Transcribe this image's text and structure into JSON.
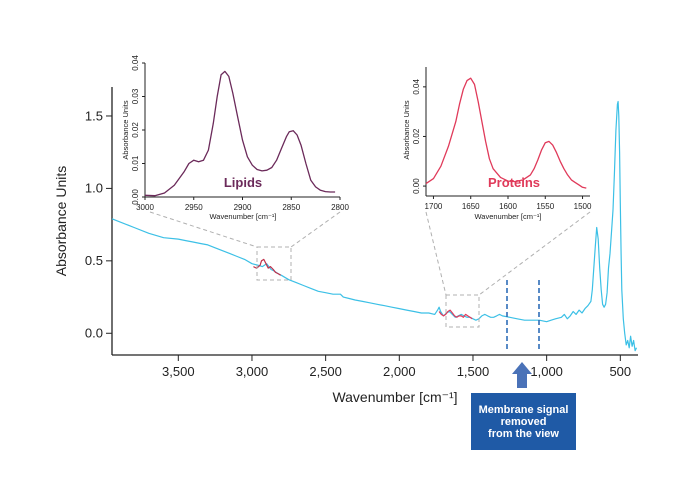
{
  "chart_data": [
    {
      "type": "line",
      "xlabel": "Wavenumber [cm⁻¹]",
      "ylabel": "Absorbance Units",
      "xlim": [
        3950,
        380
      ],
      "ylim": [
        -0.15,
        1.7
      ],
      "x_ticks": [
        3500,
        3000,
        2500,
        2000,
        1500,
        1000,
        500
      ],
      "x_tick_labels": [
        "3,500",
        "3,000",
        "2,500",
        "2,000",
        "1,500",
        "1,000",
        "500"
      ],
      "y_ticks": [
        0.0,
        0.5,
        1.0,
        1.5
      ],
      "y_tick_labels": [
        "0.0",
        "0.5",
        "1.0",
        "1.5"
      ],
      "series": [
        {
          "color": "#3cc0e6",
          "x": [
            3950,
            3800,
            3700,
            3600,
            3500,
            3450,
            3400,
            3350,
            3300,
            3250,
            3200,
            3150,
            3100,
            3050,
            3000,
            2960,
            2930,
            2900,
            2870,
            2850,
            2820,
            2800,
            2750,
            2700,
            2650,
            2600,
            2550,
            2500,
            2450,
            2400,
            2380,
            2340,
            2300,
            2250,
            2200,
            2150,
            2100,
            2050,
            2000,
            1950,
            1900,
            1850,
            1800,
            1760,
            1740,
            1730,
            1720,
            1700,
            1680,
            1660,
            1640,
            1620,
            1600,
            1580,
            1560,
            1540,
            1520,
            1500,
            1480,
            1460,
            1440,
            1420,
            1400,
            1380,
            1360,
            1340,
            1320,
            1300,
            1250,
            1200,
            1150,
            1100,
            1050,
            1000,
            970,
            940,
            900,
            880,
            860,
            840,
            820,
            800,
            780,
            760,
            740,
            720,
            700,
            690,
            680,
            670,
            660,
            650,
            640,
            630,
            620,
            610,
            600,
            590,
            580,
            570,
            560,
            550,
            540,
            530,
            520,
            515,
            510,
            505,
            500,
            495,
            490,
            480,
            470,
            460,
            450,
            440,
            430,
            420,
            410,
            400,
            390
          ],
          "y": [
            0.79,
            0.73,
            0.69,
            0.66,
            0.65,
            0.64,
            0.63,
            0.62,
            0.61,
            0.59,
            0.57,
            0.55,
            0.53,
            0.51,
            0.48,
            0.47,
            0.46,
            0.48,
            0.44,
            0.43,
            0.41,
            0.4,
            0.37,
            0.35,
            0.33,
            0.31,
            0.29,
            0.28,
            0.27,
            0.27,
            0.25,
            0.24,
            0.23,
            0.22,
            0.21,
            0.2,
            0.19,
            0.18,
            0.17,
            0.16,
            0.15,
            0.14,
            0.14,
            0.13,
            0.16,
            0.18,
            0.15,
            0.12,
            0.14,
            0.15,
            0.13,
            0.11,
            0.12,
            0.13,
            0.12,
            0.11,
            0.11,
            0.1,
            0.09,
            0.1,
            0.12,
            0.13,
            0.12,
            0.11,
            0.11,
            0.12,
            0.13,
            0.12,
            0.11,
            0.1,
            0.09,
            0.09,
            0.09,
            0.08,
            0.09,
            0.1,
            0.11,
            0.13,
            0.1,
            0.12,
            0.15,
            0.13,
            0.16,
            0.14,
            0.17,
            0.19,
            0.22,
            0.3,
            0.45,
            0.6,
            0.73,
            0.65,
            0.45,
            0.3,
            0.2,
            0.18,
            0.2,
            0.28,
            0.45,
            0.55,
            0.7,
            0.85,
            1.1,
            1.4,
            1.58,
            1.6,
            1.5,
            1.25,
            0.9,
            0.55,
            0.3,
            0.1,
            0.0,
            -0.08,
            -0.05,
            -0.1,
            -0.02,
            -0.09,
            -0.05,
            -0.12,
            -0.1
          ]
        },
        {
          "color": "#c0304a",
          "x": [
            2990,
            2970,
            2955,
            2945,
            2935,
            2920,
            2905,
            2890,
            2875,
            2855,
            2840,
            2820,
            2805
          ],
          "y": [
            0.46,
            0.45,
            0.46,
            0.47,
            0.5,
            0.51,
            0.48,
            0.45,
            0.46,
            0.44,
            0.42,
            0.41,
            0.4
          ]
        },
        {
          "color": "#e03a5a",
          "x": [
            1730,
            1715,
            1700,
            1685,
            1670,
            1655,
            1640,
            1625,
            1610,
            1595,
            1580,
            1565,
            1550,
            1535,
            1520,
            1505
          ],
          "y": [
            0.15,
            0.13,
            0.12,
            0.13,
            0.15,
            0.16,
            0.14,
            0.12,
            0.11,
            0.12,
            0.12,
            0.11,
            0.13,
            0.12,
            0.11,
            0.1
          ]
        }
      ],
      "grid": false
    },
    {
      "type": "line",
      "title": "Lipids",
      "xlabel": "Wavenumber [cm⁻¹]",
      "ylabel": "Absorbance Units",
      "xlim": [
        3000,
        2800
      ],
      "ylim": [
        0.0,
        0.04
      ],
      "x_ticks": [
        3000,
        2950,
        2900,
        2850,
        2800
      ],
      "x_tick_labels": [
        "3000",
        "2950",
        "2900",
        "2850",
        "2800"
      ],
      "y_ticks": [
        0.0,
        0.01,
        0.02,
        0.03,
        0.04
      ],
      "y_tick_labels": [
        "0.00",
        "0.01",
        "0.02",
        "0.03",
        "0.04"
      ],
      "series": [
        {
          "color": "#6b2a5a",
          "x": [
            3000,
            2990,
            2980,
            2970,
            2960,
            2955,
            2950,
            2945,
            2940,
            2935,
            2930,
            2926,
            2922,
            2918,
            2914,
            2910,
            2905,
            2900,
            2895,
            2890,
            2885,
            2880,
            2875,
            2870,
            2865,
            2860,
            2855,
            2852,
            2848,
            2844,
            2840,
            2835,
            2830,
            2825,
            2820,
            2815,
            2810,
            2805
          ],
          "y": [
            0.0005,
            0.0004,
            0.0012,
            0.0035,
            0.0075,
            0.01,
            0.011,
            0.0105,
            0.011,
            0.014,
            0.022,
            0.03,
            0.0365,
            0.0375,
            0.036,
            0.031,
            0.024,
            0.017,
            0.012,
            0.0095,
            0.0082,
            0.0078,
            0.008,
            0.0088,
            0.011,
            0.0145,
            0.018,
            0.0195,
            0.0198,
            0.0185,
            0.0155,
            0.01,
            0.005,
            0.003,
            0.002,
            0.0016,
            0.0015,
            0.0015
          ]
        }
      ],
      "grid": false
    },
    {
      "type": "line",
      "title": "Proteins",
      "xlabel": "Wavenumber [cm⁻¹]",
      "ylabel": "Absorbance Units",
      "xlim": [
        1710,
        1490
      ],
      "ylim": [
        -0.004,
        0.048
      ],
      "x_ticks": [
        1700,
        1650,
        1600,
        1550,
        1500
      ],
      "x_tick_labels": [
        "1700",
        "1650",
        "1600",
        "1550",
        "1500"
      ],
      "y_ticks": [
        0.0,
        0.02,
        0.04
      ],
      "y_tick_labels": [
        "0.00",
        "0.02",
        "0.04"
      ],
      "series": [
        {
          "color": "#e03a5a",
          "x": [
            1710,
            1700,
            1690,
            1680,
            1670,
            1665,
            1660,
            1655,
            1650,
            1645,
            1640,
            1635,
            1630,
            1625,
            1620,
            1610,
            1600,
            1590,
            1580,
            1570,
            1565,
            1560,
            1555,
            1550,
            1545,
            1540,
            1535,
            1530,
            1525,
            1520,
            1515,
            1510,
            1505,
            1500,
            1495
          ],
          "y": [
            0.001,
            0.003,
            0.008,
            0.016,
            0.026,
            0.033,
            0.039,
            0.0425,
            0.0435,
            0.041,
            0.034,
            0.026,
            0.018,
            0.011,
            0.007,
            0.0035,
            0.002,
            0.0018,
            0.0025,
            0.0045,
            0.007,
            0.0105,
            0.0145,
            0.0175,
            0.018,
            0.0165,
            0.0135,
            0.01,
            0.007,
            0.0045,
            0.0025,
            0.0015,
            0.0005,
            -0.0005,
            -0.0008
          ]
        }
      ],
      "grid": false
    }
  ],
  "annotation": {
    "line1": "Membrane signal",
    "line2": "removed",
    "line3": "from the view"
  },
  "colors": {
    "spectrum": "#3cc0e6",
    "lipids": "#6b2a5a",
    "proteins": "#e03a5a",
    "callout": "#1f5aa6",
    "zoom_box": "#b0b0b0",
    "marker_lines": "#2f6db8"
  }
}
